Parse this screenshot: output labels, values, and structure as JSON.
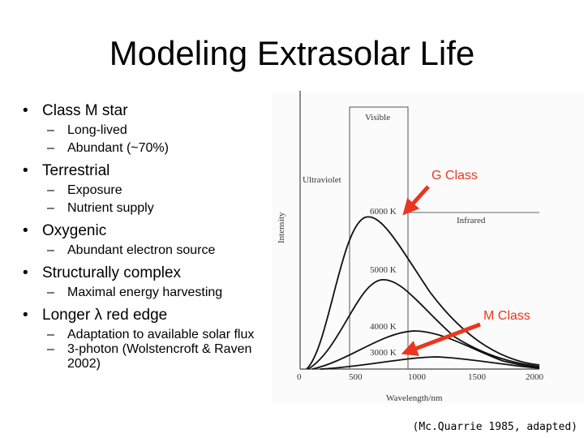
{
  "slide": {
    "title": "Modeling Extrasolar Life",
    "bullets": [
      {
        "text": "Class M star",
        "subs": [
          "Long-lived",
          "Abundant (~70%)"
        ]
      },
      {
        "text": "Terrestrial",
        "subs": [
          "Exposure",
          "Nutrient supply"
        ]
      },
      {
        "text": "Oxygenic",
        "subs": [
          "Abundant electron source"
        ]
      },
      {
        "text": "Structurally complex",
        "subs": [
          "Maximal energy harvesting"
        ]
      },
      {
        "text": "Longer λ red edge",
        "subs": [
          "Adaptation to available solar flux",
          "3-photon (Wolstencroft & Raven 2002)"
        ]
      }
    ],
    "citation": "(Mc.Quarrie 1985, adapted)"
  },
  "figure": {
    "regions": {
      "visible": "Visible",
      "ultraviolet": "Ultraviolet",
      "infrared": "Infrared"
    },
    "ylabel": "Intensity",
    "xlabel": "Wavelength/nm",
    "x_ticks": [
      "0",
      "500",
      "1000",
      "1500",
      "2000"
    ],
    "curve_labels": [
      "6000 K",
      "5000 K",
      "4000 K",
      "3000 K"
    ],
    "annotations": {
      "g_class": "G Class",
      "m_class": "M Class"
    },
    "colors": {
      "annotation": "#e8371e",
      "curve": "#111111"
    }
  }
}
